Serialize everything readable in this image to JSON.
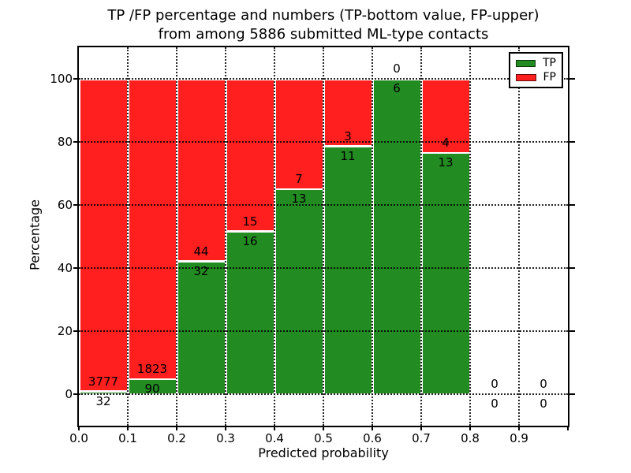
{
  "chart_data": {
    "type": "bar",
    "stacked": true,
    "title_line1": "TP /FP percentage and numbers (TP-bottom value, FP-upper)",
    "title_line2": "from among 5886 submitted ML-type contacts",
    "xlabel": "Predicted probability",
    "ylabel": "Percentage",
    "x_ticks": [
      "0.0",
      "0.1",
      "0.2",
      "0.3",
      "0.4",
      "0.5",
      "0.6",
      "0.7",
      "0.8",
      "0.9"
    ],
    "y_ticks": [
      0,
      20,
      40,
      60,
      80,
      100
    ],
    "xlim": [
      0.0,
      1.0
    ],
    "ylim": [
      -10,
      110
    ],
    "grid": "dotted",
    "legend_position": "upper-right",
    "legend": [
      {
        "label": "TP",
        "color": "#228B22"
      },
      {
        "label": "FP",
        "color": "#FF1F1F"
      }
    ],
    "total_contacts": 5886,
    "bins": [
      {
        "range": "0.0-0.1",
        "tp": 32,
        "fp": 3777,
        "tp_pct": 0.84
      },
      {
        "range": "0.1-0.2",
        "tp": 90,
        "fp": 1823,
        "tp_pct": 4.7
      },
      {
        "range": "0.2-0.3",
        "tp": 32,
        "fp": 44,
        "tp_pct": 42.11
      },
      {
        "range": "0.3-0.4",
        "tp": 16,
        "fp": 15,
        "tp_pct": 51.61
      },
      {
        "range": "0.4-0.5",
        "tp": 13,
        "fp": 7,
        "tp_pct": 65.0
      },
      {
        "range": "0.5-0.6",
        "tp": 11,
        "fp": 3,
        "tp_pct": 78.57
      },
      {
        "range": "0.6-0.7",
        "tp": 6,
        "fp": 0,
        "tp_pct": 100.0
      },
      {
        "range": "0.7-0.8",
        "tp": 13,
        "fp": 4,
        "tp_pct": 76.47
      },
      {
        "range": "0.8-0.9",
        "tp": 0,
        "fp": 0,
        "tp_pct": null
      },
      {
        "range": "0.9-1.0",
        "tp": 0,
        "fp": 0,
        "tp_pct": null
      }
    ],
    "colors": {
      "tp": "#228B22",
      "fp": "#FF1F1F",
      "background": "#FFFFFF",
      "frame": "#000000",
      "bar_edge": "#FFFFFF"
    }
  }
}
